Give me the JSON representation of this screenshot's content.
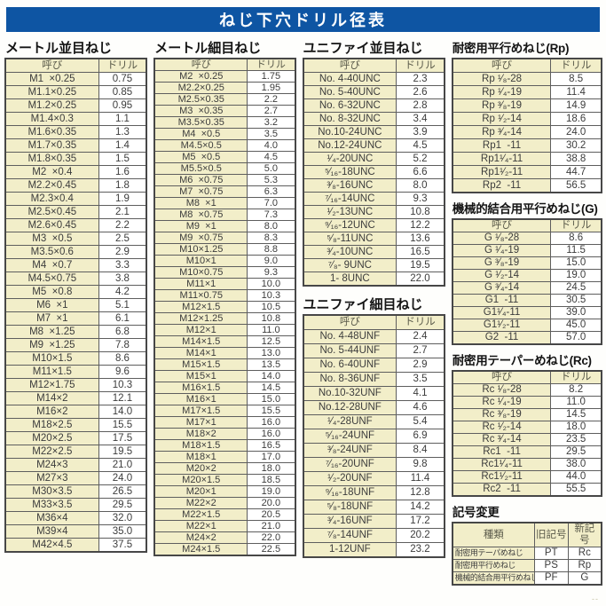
{
  "title": "ねじ下穴ドリル径表",
  "table_headers": {
    "name": "呼び",
    "drill": "ドリル"
  },
  "sections": [
    {
      "id": "metric-coarse",
      "heading": "メートル並目ねじ",
      "rows": [
        [
          "M1  ×0.25",
          "0.75"
        ],
        [
          "M1.1×0.25",
          "0.85"
        ],
        [
          "M1.2×0.25",
          "0.95"
        ],
        [
          "M1.4×0.3",
          "1.1"
        ],
        [
          "M1.6×0.35",
          "1.3"
        ],
        [
          "M1.7×0.35",
          "1.4"
        ],
        [
          "M1.8×0.35",
          "1.5"
        ],
        [
          "M2  ×0.4",
          "1.6"
        ],
        [
          "M2.2×0.45",
          "1.8"
        ],
        [
          "M2.3×0.4",
          "1.9"
        ],
        [
          "M2.5×0.45",
          "2.1"
        ],
        [
          "M2.6×0.45",
          "2.2"
        ],
        [
          "M3  ×0.5",
          "2.5"
        ],
        [
          "M3.5×0.6",
          "2.9"
        ],
        [
          "M4  ×0.7",
          "3.3"
        ],
        [
          "M4.5×0.75",
          "3.8"
        ],
        [
          "M5  ×0.8",
          "4.2"
        ],
        [
          "M6  ×1",
          "5.1"
        ],
        [
          "M7  ×1",
          "6.1"
        ],
        [
          "M8  ×1.25",
          "6.8"
        ],
        [
          "M9  ×1.25",
          "7.8"
        ],
        [
          "M10×1.5",
          "8.6"
        ],
        [
          "M11×1.5",
          "9.6"
        ],
        [
          "M12×1.75",
          "10.3"
        ],
        [
          "M14×2",
          "12.1"
        ],
        [
          "M16×2",
          "14.0"
        ],
        [
          "M18×2.5",
          "15.5"
        ],
        [
          "M20×2.5",
          "17.5"
        ],
        [
          "M22×2.5",
          "19.5"
        ],
        [
          "M24×3",
          "21.0"
        ],
        [
          "M27×3",
          "24.0"
        ],
        [
          "M30×3.5",
          "26.5"
        ],
        [
          "M33×3.5",
          "29.5"
        ],
        [
          "M36×4",
          "32.0"
        ],
        [
          "M39×4",
          "35.0"
        ],
        [
          "M42×4.5",
          "37.5"
        ]
      ]
    },
    {
      "id": "metric-fine",
      "heading": "メートル細目ねじ",
      "rows": [
        [
          "M2  ×0.25",
          "1.75"
        ],
        [
          "M2.2×0.25",
          "1.95"
        ],
        [
          "M2.5×0.35",
          "2.2"
        ],
        [
          "M3  ×0.35",
          "2.7"
        ],
        [
          "M3.5×0.35",
          "3.2"
        ],
        [
          "M4  ×0.5",
          "3.5"
        ],
        [
          "M4.5×0.5",
          "4.0"
        ],
        [
          "M5  ×0.5",
          "4.5"
        ],
        [
          "M5.5×0.5",
          "5.0"
        ],
        [
          "M6  ×0.75",
          "5.3"
        ],
        [
          "M7  ×0.75",
          "6.3"
        ],
        [
          "M8  ×1",
          "7.0"
        ],
        [
          "M8  ×0.75",
          "7.3"
        ],
        [
          "M9  ×1",
          "8.0"
        ],
        [
          "M9  ×0.75",
          "8.3"
        ],
        [
          "M10×1.25",
          "8.8"
        ],
        [
          "M10×1",
          "9.0"
        ],
        [
          "M10×0.75",
          "9.3"
        ],
        [
          "M11×1",
          "10.0"
        ],
        [
          "M11×0.75",
          "10.3"
        ],
        [
          "M12×1.5",
          "10.5"
        ],
        [
          "M12×1.25",
          "10.8"
        ],
        [
          "M12×1",
          "11.0"
        ],
        [
          "M14×1.5",
          "12.5"
        ],
        [
          "M14×1",
          "13.0"
        ],
        [
          "M15×1.5",
          "13.5"
        ],
        [
          "M15×1",
          "14.0"
        ],
        [
          "M16×1.5",
          "14.5"
        ],
        [
          "M16×1",
          "15.0"
        ],
        [
          "M17×1.5",
          "15.5"
        ],
        [
          "M17×1",
          "16.0"
        ],
        [
          "M18×2",
          "16.0"
        ],
        [
          "M18×1.5",
          "16.5"
        ],
        [
          "M18×1",
          "17.0"
        ],
        [
          "M20×2",
          "18.0"
        ],
        [
          "M20×1.5",
          "18.5"
        ],
        [
          "M20×1",
          "19.0"
        ],
        [
          "M22×2",
          "20.0"
        ],
        [
          "M22×1.5",
          "20.5"
        ],
        [
          "M22×1",
          "21.0"
        ],
        [
          "M24×2",
          "22.0"
        ],
        [
          "M24×1.5",
          "22.5"
        ]
      ]
    },
    {
      "id": "unified-coarse",
      "heading": "ユニファイ並目ねじ",
      "rows": [
        [
          "No. 4-40UNC",
          "2.3"
        ],
        [
          "No. 5-40UNC",
          "2.6"
        ],
        [
          "No. 6-32UNC",
          "2.8"
        ],
        [
          "No. 8-32UNC",
          "3.4"
        ],
        [
          "No.10-24UNC",
          "3.9"
        ],
        [
          "No.12-24UNC",
          "4.5"
        ],
        [
          "¹⁄₄-20UNC",
          "5.2"
        ],
        [
          "⁵⁄₁₆-18UNC",
          "6.6"
        ],
        [
          "³⁄₈-16UNC",
          "8.0"
        ],
        [
          "⁷⁄₁₆-14UNC",
          "9.3"
        ],
        [
          "¹⁄₂-13UNC",
          "10.8"
        ],
        [
          "⁹⁄₁₆-12UNC",
          "12.2"
        ],
        [
          "⁵⁄₈-11UNC",
          "13.6"
        ],
        [
          "³⁄₄-10UNC",
          "16.5"
        ],
        [
          "⁷⁄₈- 9UNC",
          "19.5"
        ],
        [
          "1- 8UNC",
          "22.0"
        ]
      ]
    },
    {
      "id": "unified-fine",
      "heading": "ユニファイ細目ねじ",
      "rows": [
        [
          "No. 4-48UNF",
          "2.4"
        ],
        [
          "No. 5-44UNF",
          "2.7"
        ],
        [
          "No. 6-40UNF",
          "2.9"
        ],
        [
          "No. 8-36UNF",
          "3.5"
        ],
        [
          "No.10-32UNF",
          "4.1"
        ],
        [
          "No.12-28UNF",
          "4.6"
        ],
        [
          "¹⁄₄-28UNF",
          "5.4"
        ],
        [
          "⁵⁄₁₆-24UNF",
          "6.9"
        ],
        [
          "³⁄₈-24UNF",
          "8.4"
        ],
        [
          "⁷⁄₁₆-20UNF",
          "9.8"
        ],
        [
          "¹⁄₂-20UNF",
          "11.4"
        ],
        [
          "⁹⁄₁₆-18UNF",
          "12.8"
        ],
        [
          "⁵⁄₈-18UNF",
          "14.2"
        ],
        [
          "³⁄₄-16UNF",
          "17.2"
        ],
        [
          "⁷⁄₈-14UNF",
          "20.2"
        ],
        [
          "1-12UNF",
          "23.2"
        ]
      ]
    },
    {
      "id": "rp-parallel-sealing",
      "heading": "耐密用平行めねじ(Rp)",
      "rows": [
        [
          "Rp ¹⁄₈-28",
          "8.5"
        ],
        [
          "Rp ¹⁄₄-19",
          "11.4"
        ],
        [
          "Rp ³⁄₈-19",
          "14.9"
        ],
        [
          "Rp ¹⁄₂-14",
          "18.6"
        ],
        [
          "Rp ³⁄₄-14",
          "24.0"
        ],
        [
          "Rp1  -11",
          "30.2"
        ],
        [
          "Rp1¹⁄₄-11",
          "38.8"
        ],
        [
          "Rp1¹⁄₂-11",
          "44.7"
        ],
        [
          "Rp2  -11",
          "56.5"
        ]
      ]
    },
    {
      "id": "g-parallel-mechanical",
      "heading": "機械的結合用平行めねじ(G)",
      "rows": [
        [
          "G ¹⁄₈-28",
          "8.6"
        ],
        [
          "G ¹⁄₄-19",
          "11.5"
        ],
        [
          "G ³⁄₈-19",
          "15.0"
        ],
        [
          "G ¹⁄₂-14",
          "19.0"
        ],
        [
          "G ³⁄₄-14",
          "24.5"
        ],
        [
          "G1  -11",
          "30.5"
        ],
        [
          "G1¹⁄₄-11",
          "39.0"
        ],
        [
          "G1¹⁄₂-11",
          "45.0"
        ],
        [
          "G2  -11",
          "57.0"
        ]
      ]
    },
    {
      "id": "rc-taper-sealing",
      "heading": "耐密用テーパーめねじ(Rc)",
      "rows": [
        [
          "Rc ¹⁄₈-28",
          "8.2"
        ],
        [
          "Rc ¹⁄₄-19",
          "11.0"
        ],
        [
          "Rc ³⁄₈-19",
          "14.5"
        ],
        [
          "Rc ¹⁄₂-14",
          "18.0"
        ],
        [
          "Rc ³⁄₄-14",
          "23.5"
        ],
        [
          "Rc1  -11",
          "29.5"
        ],
        [
          "Rc1¹⁄₄-11",
          "38.0"
        ],
        [
          "Rc1¹⁄₂-11",
          "44.0"
        ],
        [
          "Rc2  -11",
          "55.5"
        ]
      ]
    }
  ],
  "symbol_change": {
    "heading": "記号変更",
    "headers": [
      "種類",
      "旧記号",
      "新記号"
    ],
    "rows": [
      [
        "耐密用テーパめねじ",
        "PT",
        "Rc"
      ],
      [
        "耐密用平行めねじ",
        "PS",
        "Rp"
      ],
      [
        "機械的結合用平行めねじ",
        "PF",
        "G"
      ]
    ]
  },
  "page_marker": "--",
  "colors": {
    "title_bar_bg": "#0e55a3",
    "title_text": "#ffffff",
    "cell_cream_bg": "#f2eec9",
    "border": "#474747"
  }
}
